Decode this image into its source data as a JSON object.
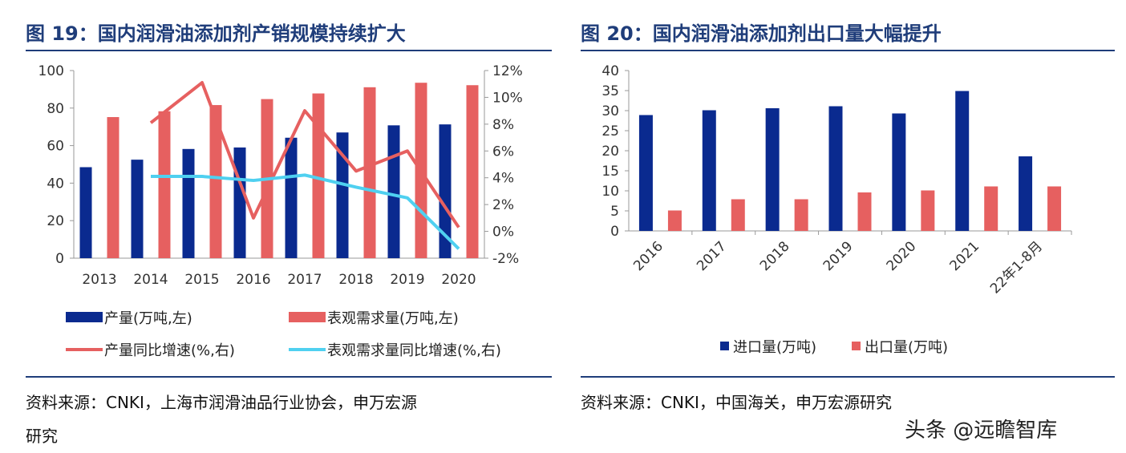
{
  "left": {
    "title": "图 19：国内润滑油添加剂产销规模持续扩大",
    "source_line1": "资料来源：CNKI，上海市润滑油品行业协会，申万宏源",
    "source_line2": "研究"
  },
  "right": {
    "title": "图 20：国内润滑油添加剂出口量大幅提升",
    "source": "资料来源：CNKI，中国海关，申万宏源研究"
  },
  "watermark": "头条 @远瞻智库",
  "colors": {
    "navy": "#0a2a8f",
    "coral": "#e66060",
    "cyan": "#4fd0f0",
    "title": "#1f3d7a"
  },
  "chart_data": [
    {
      "type": "bar",
      "categories": [
        "2013",
        "2014",
        "2015",
        "2016",
        "2017",
        "2018",
        "2019",
        "2020"
      ],
      "left_axis": {
        "ticks": [
          "0",
          "20",
          "40",
          "60",
          "80",
          "100"
        ],
        "ylim": [
          0,
          100
        ]
      },
      "right_axis": {
        "ticks": [
          "-2%",
          "0%",
          "2%",
          "4%",
          "6%",
          "8%",
          "10%",
          "12%"
        ],
        "ylim": [
          -2,
          12
        ]
      },
      "series": [
        {
          "name": "产量(万吨,左)",
          "kind": "bar",
          "axis": "left",
          "color": "#0a2a8f",
          "values": [
            48.5,
            52.5,
            58.2,
            59,
            64.2,
            67,
            70.8,
            71.3
          ]
        },
        {
          "name": "表观需求量(万吨,左)",
          "kind": "bar",
          "axis": "left",
          "color": "#e66060",
          "values": [
            75.2,
            78.3,
            81.6,
            84.8,
            87.8,
            91.1,
            93.5,
            92.2
          ]
        },
        {
          "name": "产量同比增速(%,右)",
          "kind": "line",
          "axis": "right",
          "color": "#e66060",
          "values": [
            null,
            8.1,
            11.1,
            1.0,
            9.0,
            4.5,
            6.0,
            0.3
          ]
        },
        {
          "name": "表观需求量同比增速(%,右)",
          "kind": "line",
          "axis": "right",
          "color": "#4fd0f0",
          "values": [
            null,
            4.1,
            4.1,
            3.8,
            4.2,
            3.3,
            2.5,
            -1.3
          ]
        }
      ]
    },
    {
      "type": "bar",
      "categories": [
        "2016",
        "2017",
        "2018",
        "2019",
        "2020",
        "2021",
        "22年1-8月"
      ],
      "ylim": [
        0,
        40
      ],
      "ticks": [
        "0",
        "5",
        "10",
        "15",
        "20",
        "25",
        "30",
        "35",
        "40"
      ],
      "series": [
        {
          "name": "进口量(万吨)",
          "color": "#0a2a8f",
          "values": [
            28.9,
            30.1,
            30.6,
            31.1,
            29.3,
            34.9,
            18.6
          ]
        },
        {
          "name": "出口量(万吨)",
          "color": "#e66060",
          "values": [
            5.1,
            7.9,
            7.9,
            9.6,
            10.1,
            11.1,
            11.1
          ]
        }
      ]
    }
  ]
}
